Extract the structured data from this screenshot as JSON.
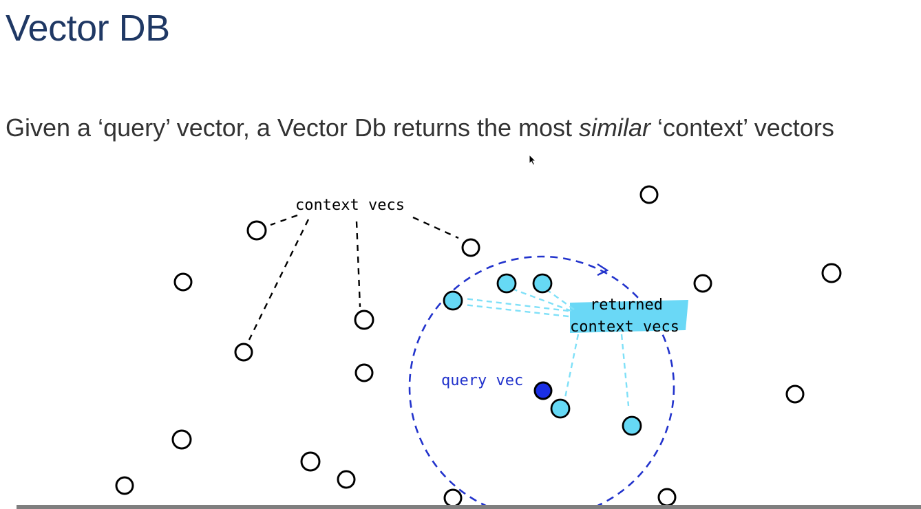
{
  "slide": {
    "title": "Vector DB",
    "subtitle": {
      "before": "Given a ‘query’ vector, a Vector Db returns the most ",
      "emphasis": "similar",
      "after": " ‘context’ vectors"
    }
  },
  "diagram": {
    "labels": {
      "context_vecs": "context vecs",
      "returned_line1": "returned",
      "returned_line2": "context vecs",
      "query_vec": "query vec"
    },
    "colors": {
      "outline": "#000000",
      "returned_fill": "#66d9f5",
      "query_fill": "#1a2fe6",
      "radius_circle": "#2233cc",
      "highlight": "#6ad8f6",
      "leader_cyan": "#7fe0f8"
    }
  }
}
